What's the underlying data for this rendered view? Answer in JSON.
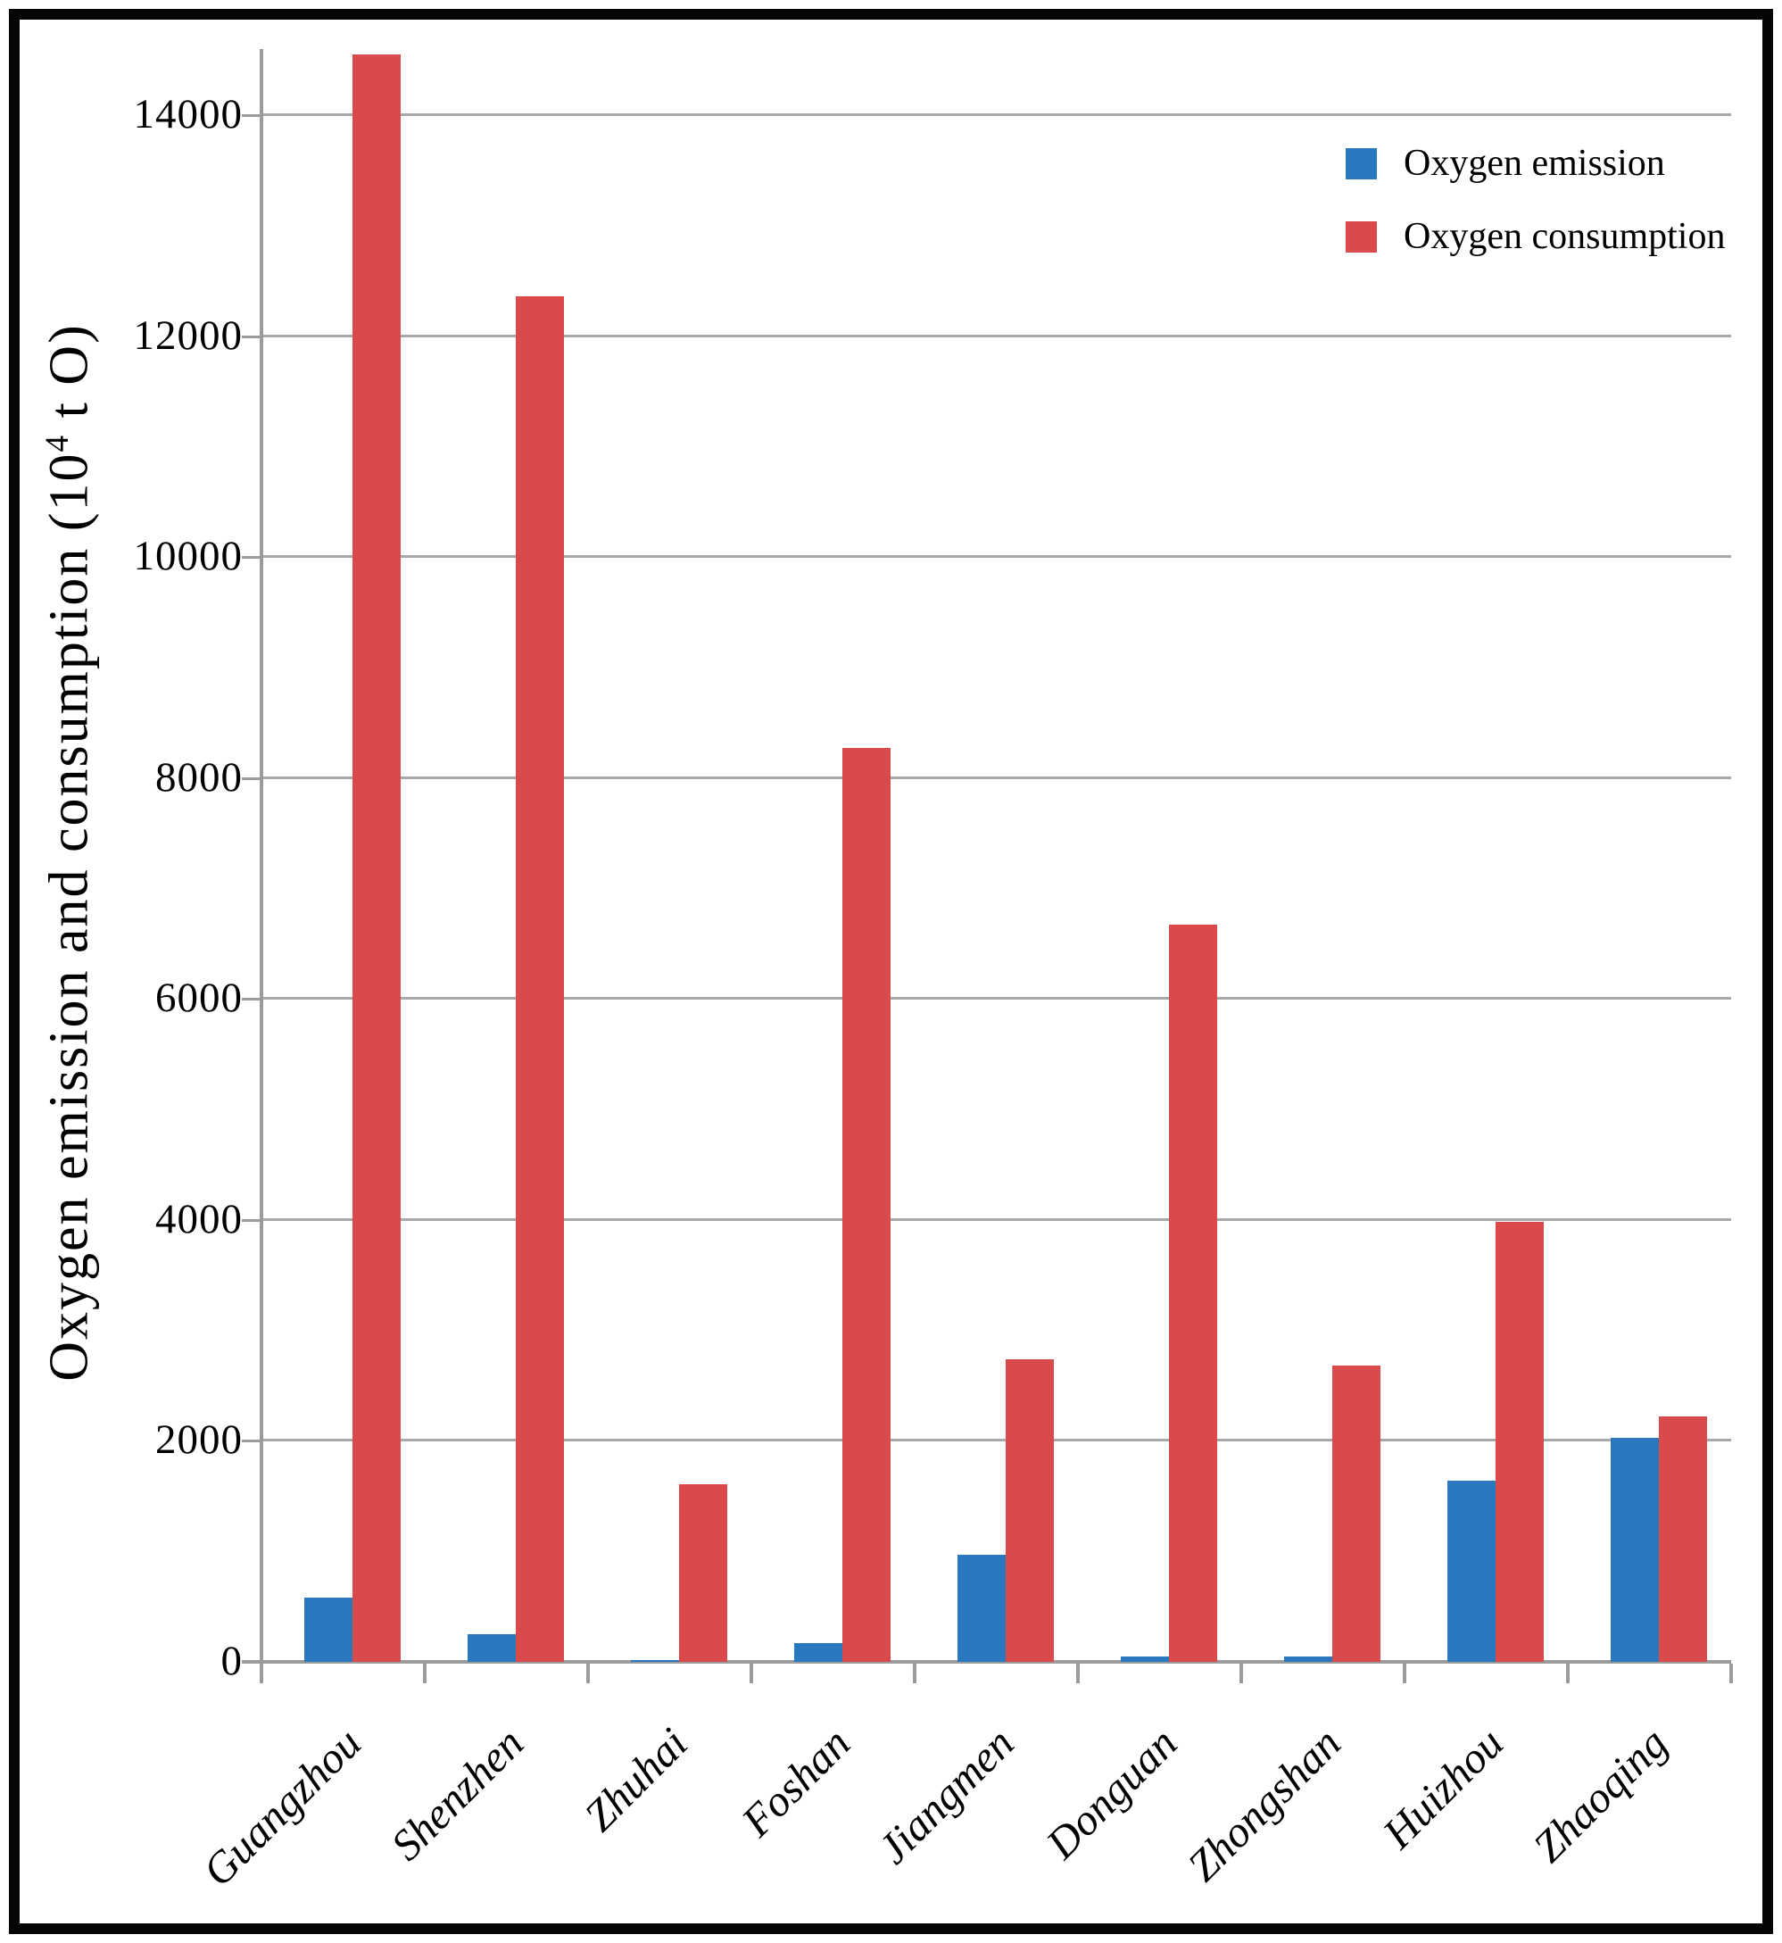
{
  "colors": {
    "emission_blue": "#2a79bf",
    "consumption_red": "#db4a4a",
    "gridline_grey": "#a8a8a8",
    "axis_grey": "#9b9b9b",
    "text_black": "#000000",
    "frame_black": "#050505"
  },
  "y_axis": {
    "label_prefix": "Oxygen emission and consumption (10",
    "label_sup": "4",
    "label_suffix": " t O)"
  },
  "legend": {
    "items": [
      {
        "label": "Oxygen emission",
        "color": "#2a79bf"
      },
      {
        "label": "Oxygen consumption",
        "color": "#db4a4a"
      }
    ]
  },
  "chart_data": {
    "type": "bar",
    "categories": [
      "Guangzhou",
      "Shenzhen",
      "Zhuhai",
      "Foshan",
      "Jiangmen",
      "Donguan",
      "Zhongshan",
      "Huizhou",
      "Zhaoqing"
    ],
    "series": [
      {
        "name": "Oxygen emission",
        "color": "#2a79bf",
        "values": [
          580,
          250,
          20,
          170,
          970,
          50,
          50,
          1640,
          2030
        ]
      },
      {
        "name": "Oxygen consumption",
        "color": "#db4a4a",
        "values": [
          14550,
          12360,
          1610,
          8270,
          2740,
          6670,
          2680,
          3980,
          2220
        ]
      }
    ],
    "title": "",
    "xlabel": "",
    "ylabel": "Oxygen emission and consumption (10^4 t O)",
    "yticks": [
      0,
      2000,
      4000,
      6000,
      8000,
      10000,
      12000,
      14000
    ],
    "ylim": [
      0,
      14600
    ],
    "grid": true,
    "legend_position": "top-right-inside"
  }
}
